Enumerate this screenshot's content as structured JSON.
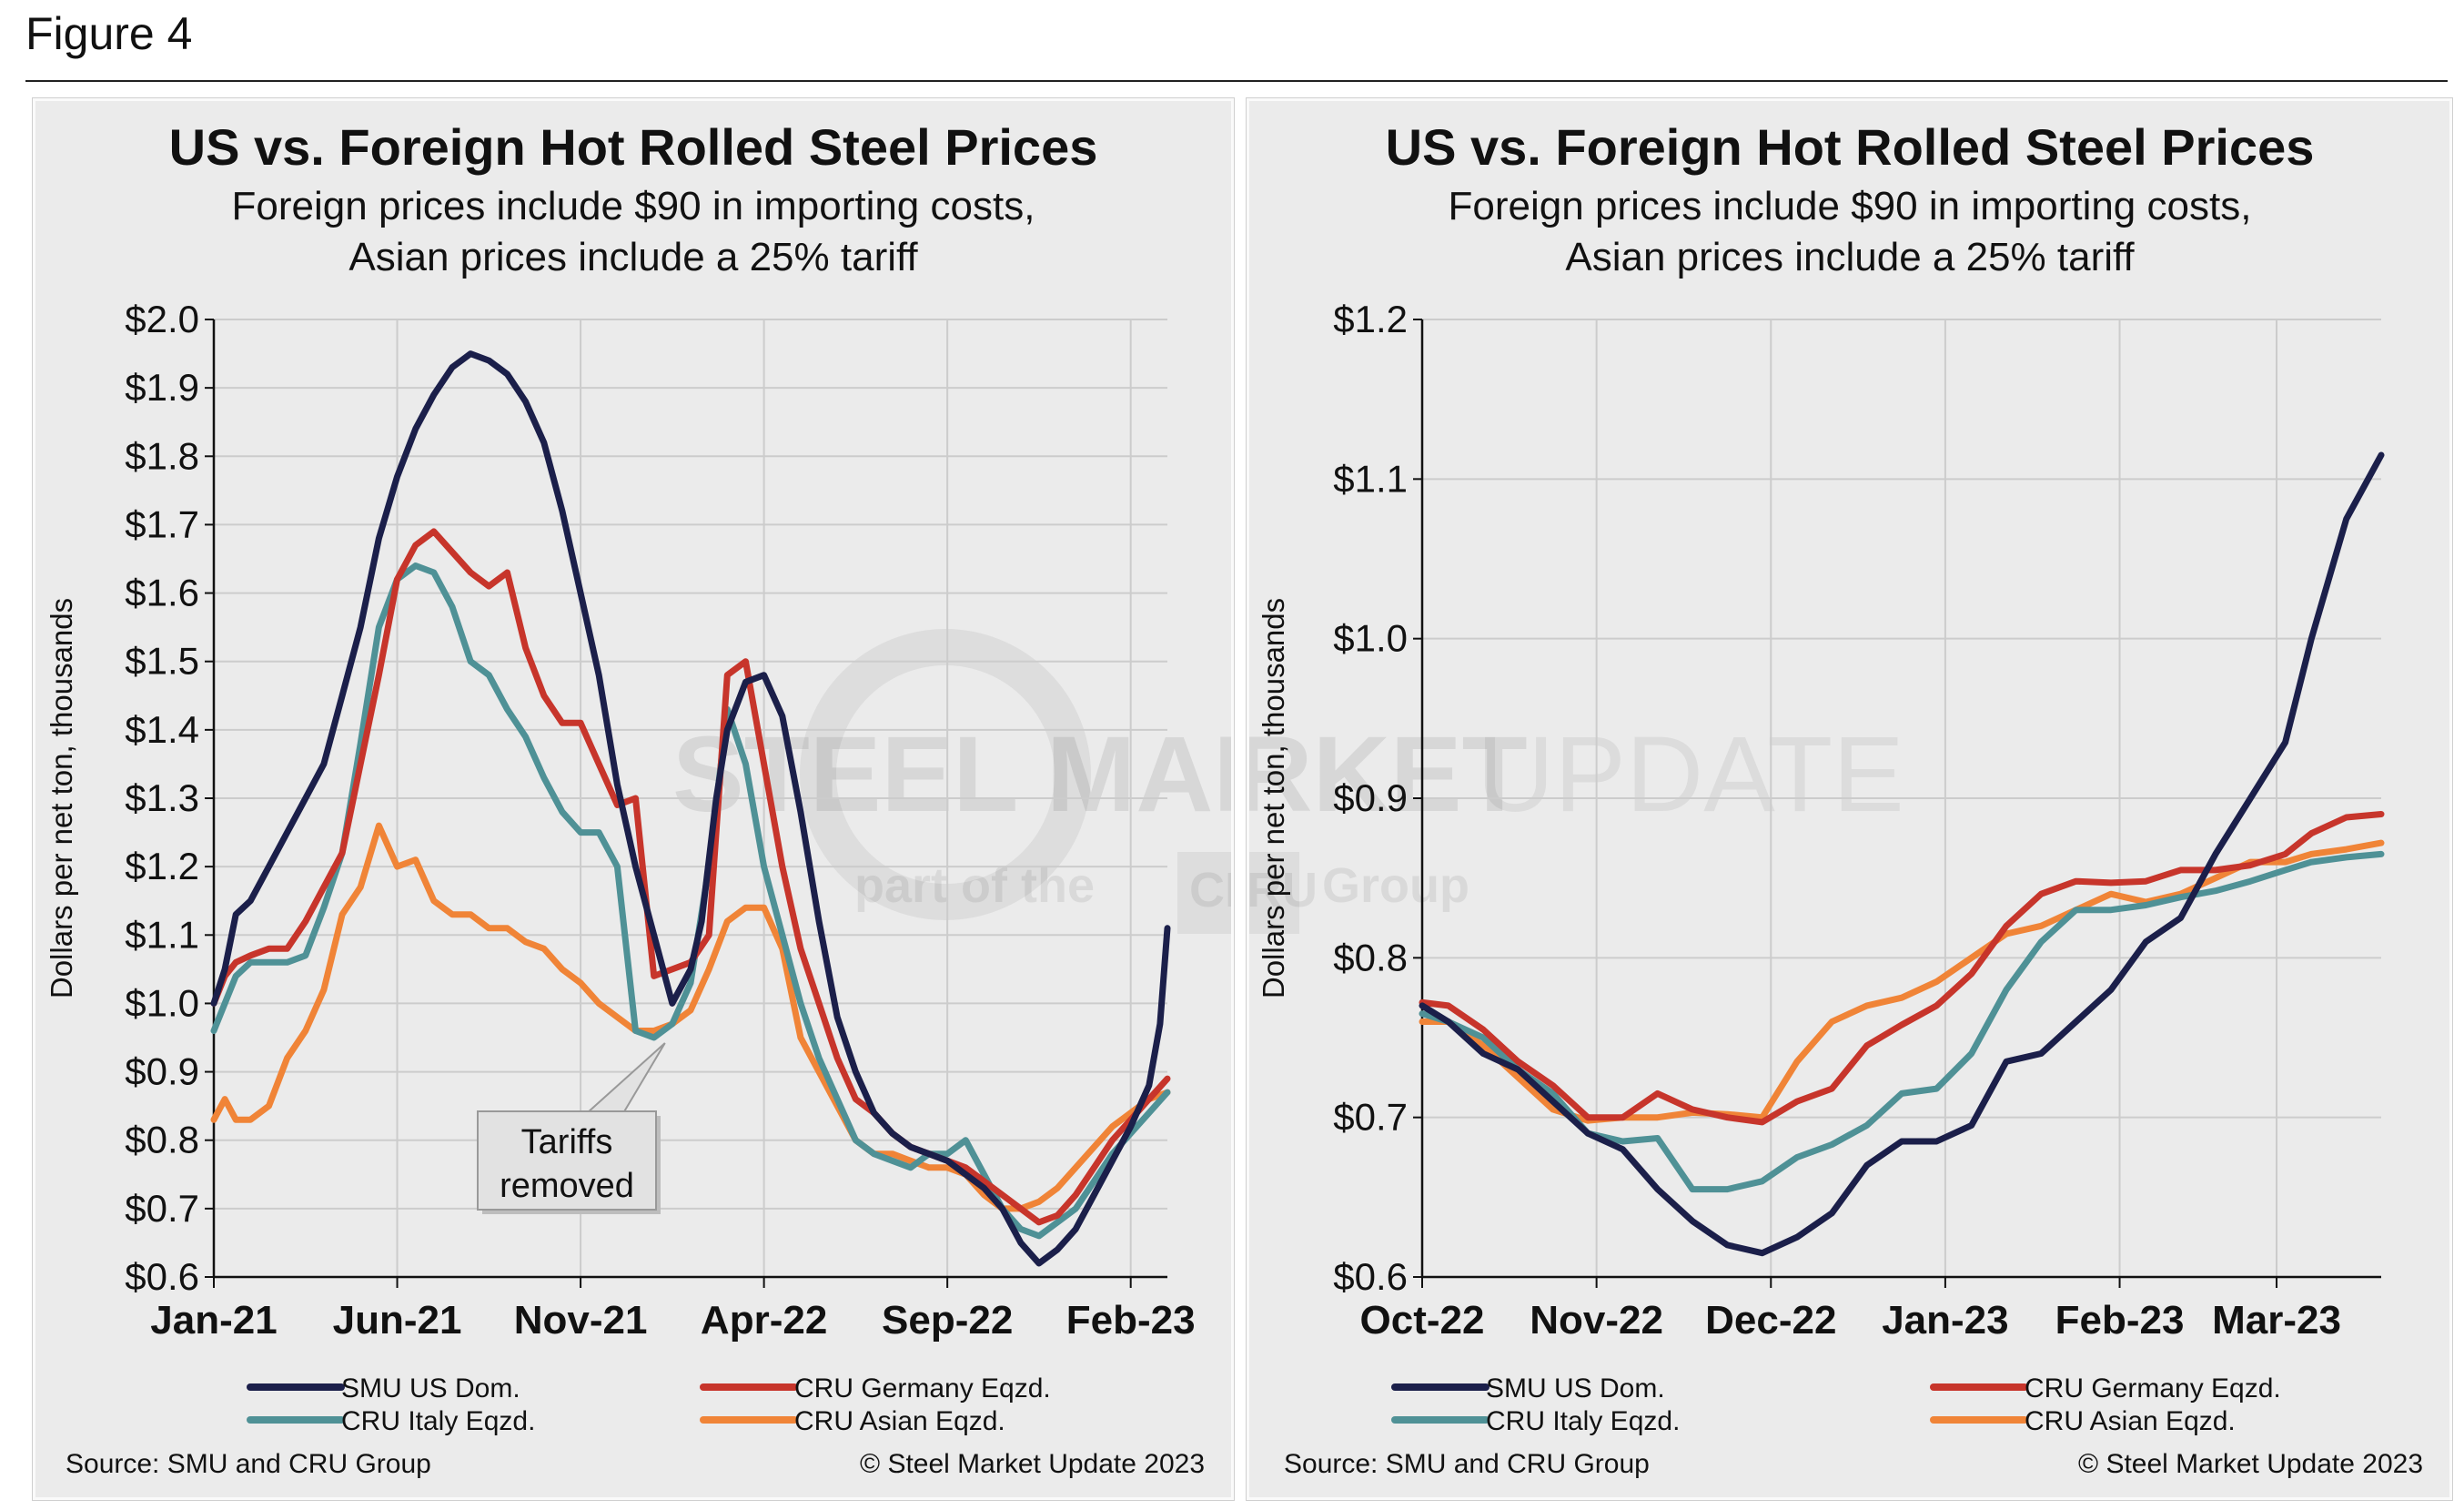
{
  "figure_label": "Figure 4",
  "watermark": {
    "brand_bold": "STEEL MARKET",
    "brand_light": "UPDATE",
    "part_of": "part of the",
    "cru": "CRU",
    "group": "Group"
  },
  "colors": {
    "smu": "#1b1f4a",
    "germany": "#c7352b",
    "italy": "#4f9196",
    "asian": "#f08437",
    "grid": "#cccccc"
  },
  "chart_data": [
    {
      "type": "line",
      "title": "US vs. Foreign Hot Rolled Steel Prices",
      "subtitle": [
        "Foreign prices include $90 in importing costs,",
        "Asian prices include a 25% tariff"
      ],
      "ylabel": "Dollars per net ton, thousands",
      "ylim": [
        0.6,
        2.0
      ],
      "yticks": [
        "$2.0",
        "$1.9",
        "$1.8",
        "$1.7",
        "$1.6",
        "$1.5",
        "$1.4",
        "$1.3",
        "$1.2",
        "$1.1",
        "$1.0",
        "$0.9",
        "$0.8",
        "$0.7",
        "$0.6"
      ],
      "ytick_values": [
        2.0,
        1.9,
        1.8,
        1.7,
        1.6,
        1.5,
        1.4,
        1.3,
        1.2,
        1.1,
        1.0,
        0.9,
        0.8,
        0.7,
        0.6
      ],
      "xlim": [
        0,
        26
      ],
      "xticks": [
        "Jan-21",
        "Jun-21",
        "Nov-21",
        "Apr-22",
        "Sep-22",
        "Feb-23"
      ],
      "xtick_values": [
        0,
        5,
        10,
        15,
        20,
        25
      ],
      "annotation": {
        "lines": [
          "Tariffs",
          "removed"
        ],
        "x": 12.3,
        "y": 0.95
      },
      "series": [
        {
          "name": "SMU US Dom.",
          "color_key": "smu",
          "x": [
            0,
            0.3,
            0.6,
            1,
            1.5,
            2,
            2.5,
            3,
            3.5,
            4,
            4.5,
            5,
            5.5,
            6,
            6.5,
            7,
            7.5,
            8,
            8.5,
            9,
            9.5,
            10,
            10.5,
            11,
            11.5,
            12,
            12.5,
            13,
            13.3,
            13.7,
            14,
            14.5,
            15,
            15.5,
            16,
            16.5,
            17,
            17.5,
            18,
            18.5,
            19,
            19.5,
            20,
            20.5,
            21,
            21.5,
            22,
            22.5,
            23,
            23.5,
            24,
            24.5,
            25,
            25.5,
            25.8,
            26
          ],
          "y": [
            1.0,
            1.05,
            1.13,
            1.15,
            1.2,
            1.25,
            1.3,
            1.35,
            1.45,
            1.55,
            1.68,
            1.77,
            1.84,
            1.89,
            1.93,
            1.95,
            1.94,
            1.92,
            1.88,
            1.82,
            1.72,
            1.6,
            1.48,
            1.32,
            1.2,
            1.1,
            1.0,
            1.05,
            1.12,
            1.3,
            1.4,
            1.47,
            1.48,
            1.42,
            1.28,
            1.12,
            0.98,
            0.9,
            0.84,
            0.81,
            0.79,
            0.78,
            0.77,
            0.75,
            0.73,
            0.7,
            0.65,
            0.62,
            0.64,
            0.67,
            0.72,
            0.77,
            0.82,
            0.88,
            0.97,
            1.11
          ]
        },
        {
          "name": "CRU Germany Eqzd.",
          "color_key": "germany",
          "x": [
            0,
            0.3,
            0.6,
            1,
            1.5,
            2,
            2.5,
            3,
            3.5,
            4,
            4.5,
            5,
            5.5,
            6,
            6.5,
            7,
            7.5,
            8,
            8.5,
            9,
            9.5,
            10,
            10.5,
            11,
            11.5,
            12,
            12.5,
            13,
            13.5,
            14,
            14.5,
            15,
            15.5,
            16,
            16.5,
            17,
            17.5,
            18,
            18.5,
            19,
            19.5,
            20,
            20.5,
            21,
            21.5,
            22,
            22.5,
            23,
            23.5,
            24,
            24.5,
            25,
            25.5,
            26
          ],
          "y": [
            1.0,
            1.04,
            1.06,
            1.07,
            1.08,
            1.08,
            1.12,
            1.17,
            1.22,
            1.35,
            1.48,
            1.62,
            1.67,
            1.69,
            1.66,
            1.63,
            1.61,
            1.63,
            1.52,
            1.45,
            1.41,
            1.41,
            1.35,
            1.29,
            1.3,
            1.04,
            1.05,
            1.06,
            1.1,
            1.48,
            1.5,
            1.35,
            1.2,
            1.08,
            1.0,
            0.92,
            0.86,
            0.84,
            0.81,
            0.79,
            0.78,
            0.77,
            0.76,
            0.74,
            0.72,
            0.7,
            0.68,
            0.69,
            0.72,
            0.76,
            0.8,
            0.83,
            0.86,
            0.89
          ]
        },
        {
          "name": "CRU Italy Eqzd.",
          "color_key": "italy",
          "x": [
            0,
            0.3,
            0.6,
            1,
            1.5,
            2,
            2.5,
            3,
            3.5,
            4,
            4.5,
            5,
            5.5,
            6,
            6.5,
            7,
            7.5,
            8,
            8.5,
            9,
            9.5,
            10,
            10.5,
            11,
            11.5,
            12,
            12.5,
            13,
            13.5,
            14,
            14.5,
            15,
            15.5,
            16,
            16.5,
            17,
            17.5,
            18,
            18.5,
            19,
            19.5,
            20,
            20.5,
            21,
            21.5,
            22,
            22.5,
            23,
            23.5,
            24,
            24.5,
            25,
            25.5,
            26
          ],
          "y": [
            0.96,
            1.0,
            1.04,
            1.06,
            1.06,
            1.06,
            1.07,
            1.14,
            1.22,
            1.38,
            1.55,
            1.62,
            1.64,
            1.63,
            1.58,
            1.5,
            1.48,
            1.43,
            1.39,
            1.33,
            1.28,
            1.25,
            1.25,
            1.2,
            0.96,
            0.95,
            0.97,
            1.03,
            1.2,
            1.43,
            1.35,
            1.2,
            1.1,
            1.0,
            0.92,
            0.86,
            0.8,
            0.78,
            0.77,
            0.76,
            0.78,
            0.78,
            0.8,
            0.75,
            0.7,
            0.67,
            0.66,
            0.68,
            0.7,
            0.74,
            0.78,
            0.81,
            0.84,
            0.87
          ]
        },
        {
          "name": "CRU Asian Eqzd.",
          "color_key": "asian",
          "x": [
            0,
            0.3,
            0.6,
            1,
            1.5,
            2,
            2.5,
            3,
            3.5,
            4,
            4.5,
            5,
            5.5,
            6,
            6.5,
            7,
            7.5,
            8,
            8.5,
            9,
            9.5,
            10,
            10.5,
            11,
            11.5,
            12,
            12.5,
            13,
            13.5,
            14,
            14.5,
            15,
            15.5,
            16,
            16.5,
            17,
            17.5,
            18,
            18.5,
            19,
            19.5,
            20,
            20.5,
            21,
            21.5,
            22,
            22.5,
            23,
            23.5,
            24,
            24.5,
            25,
            25.5,
            26
          ],
          "y": [
            0.83,
            0.86,
            0.83,
            0.83,
            0.85,
            0.92,
            0.96,
            1.02,
            1.13,
            1.17,
            1.26,
            1.2,
            1.21,
            1.15,
            1.13,
            1.13,
            1.11,
            1.11,
            1.09,
            1.08,
            1.05,
            1.03,
            1.0,
            0.98,
            0.96,
            0.96,
            0.97,
            0.99,
            1.05,
            1.12,
            1.14,
            1.14,
            1.08,
            0.95,
            0.9,
            0.85,
            0.8,
            0.78,
            0.78,
            0.77,
            0.76,
            0.76,
            0.75,
            0.72,
            0.7,
            0.7,
            0.71,
            0.73,
            0.76,
            0.79,
            0.82,
            0.84,
            0.86,
            0.87
          ]
        }
      ],
      "legend": [
        "SMU US Dom.",
        "CRU Germany Eqzd.",
        "CRU Italy Eqzd.",
        "CRU Asian Eqzd."
      ],
      "source_left": "Source: SMU and CRU Group",
      "source_right": "© Steel Market Update 2023"
    },
    {
      "type": "line",
      "title": "US vs. Foreign Hot Rolled Steel Prices",
      "subtitle": [
        "Foreign prices include $90 in importing costs,",
        "Asian prices include a 25% tariff"
      ],
      "ylabel": "Dollars per net ton, thousands",
      "ylim": [
        0.6,
        1.2
      ],
      "yticks": [
        "$1.2",
        "$1.1",
        "$1.0",
        "$0.9",
        "$0.8",
        "$0.7",
        "$0.6"
      ],
      "ytick_values": [
        1.2,
        1.1,
        1.0,
        0.9,
        0.8,
        0.7,
        0.6
      ],
      "xlim": [
        0,
        5.5
      ],
      "xticks": [
        "Oct-22",
        "Nov-22",
        "Dec-22",
        "Jan-23",
        "Feb-23",
        "Mar-23"
      ],
      "xtick_values": [
        0,
        1,
        2,
        3,
        4,
        4.9
      ],
      "series": [
        {
          "name": "SMU US Dom.",
          "color_key": "smu",
          "x": [
            0,
            0.15,
            0.35,
            0.55,
            0.75,
            0.95,
            1.15,
            1.35,
            1.55,
            1.75,
            1.95,
            2.15,
            2.35,
            2.55,
            2.75,
            2.95,
            3.15,
            3.35,
            3.55,
            3.75,
            3.95,
            4.15,
            4.35,
            4.55,
            4.75,
            4.95,
            5.1,
            5.3,
            5.5
          ],
          "y": [
            0.77,
            0.76,
            0.74,
            0.73,
            0.71,
            0.69,
            0.68,
            0.655,
            0.635,
            0.62,
            0.615,
            0.625,
            0.64,
            0.67,
            0.685,
            0.685,
            0.695,
            0.735,
            0.74,
            0.76,
            0.78,
            0.81,
            0.825,
            0.865,
            0.9,
            0.935,
            1.0,
            1.075,
            1.115
          ]
        },
        {
          "name": "CRU Germany Eqzd.",
          "color_key": "germany",
          "x": [
            0,
            0.15,
            0.35,
            0.55,
            0.75,
            0.95,
            1.15,
            1.35,
            1.55,
            1.75,
            1.95,
            2.15,
            2.35,
            2.55,
            2.75,
            2.95,
            3.15,
            3.35,
            3.55,
            3.75,
            3.95,
            4.15,
            4.35,
            4.55,
            4.75,
            4.95,
            5.1,
            5.3,
            5.5
          ],
          "y": [
            0.772,
            0.77,
            0.755,
            0.735,
            0.72,
            0.7,
            0.7,
            0.715,
            0.705,
            0.7,
            0.697,
            0.71,
            0.718,
            0.745,
            0.758,
            0.77,
            0.79,
            0.82,
            0.84,
            0.848,
            0.847,
            0.848,
            0.855,
            0.855,
            0.858,
            0.865,
            0.878,
            0.888,
            0.89
          ]
        },
        {
          "name": "CRU Italy Eqzd.",
          "color_key": "italy",
          "x": [
            0,
            0.15,
            0.35,
            0.55,
            0.75,
            0.95,
            1.15,
            1.35,
            1.55,
            1.75,
            1.95,
            2.15,
            2.35,
            2.55,
            2.75,
            2.95,
            3.15,
            3.35,
            3.55,
            3.75,
            3.95,
            4.15,
            4.35,
            4.55,
            4.75,
            4.95,
            5.1,
            5.3,
            5.5
          ],
          "y": [
            0.765,
            0.76,
            0.75,
            0.73,
            0.715,
            0.69,
            0.685,
            0.687,
            0.655,
            0.655,
            0.66,
            0.675,
            0.683,
            0.695,
            0.715,
            0.718,
            0.74,
            0.78,
            0.81,
            0.83,
            0.83,
            0.833,
            0.838,
            0.842,
            0.848,
            0.855,
            0.86,
            0.863,
            0.865
          ]
        },
        {
          "name": "CRU Asian Eqzd.",
          "color_key": "asian",
          "x": [
            0,
            0.15,
            0.35,
            0.55,
            0.75,
            0.95,
            1.15,
            1.35,
            1.55,
            1.75,
            1.95,
            2.15,
            2.35,
            2.55,
            2.75,
            2.95,
            3.15,
            3.35,
            3.55,
            3.75,
            3.95,
            4.15,
            4.35,
            4.55,
            4.75,
            4.95,
            5.1,
            5.3,
            5.5
          ],
          "y": [
            0.76,
            0.76,
            0.745,
            0.725,
            0.705,
            0.698,
            0.7,
            0.7,
            0.703,
            0.702,
            0.7,
            0.735,
            0.76,
            0.77,
            0.775,
            0.785,
            0.8,
            0.815,
            0.82,
            0.83,
            0.84,
            0.835,
            0.84,
            0.85,
            0.86,
            0.86,
            0.865,
            0.868,
            0.872
          ]
        }
      ],
      "legend": [
        "SMU US Dom.",
        "CRU Germany Eqzd.",
        "CRU Italy Eqzd.",
        "CRU Asian Eqzd."
      ],
      "source_left": "Source: SMU and CRU Group",
      "source_right": "© Steel Market Update 2023"
    }
  ]
}
